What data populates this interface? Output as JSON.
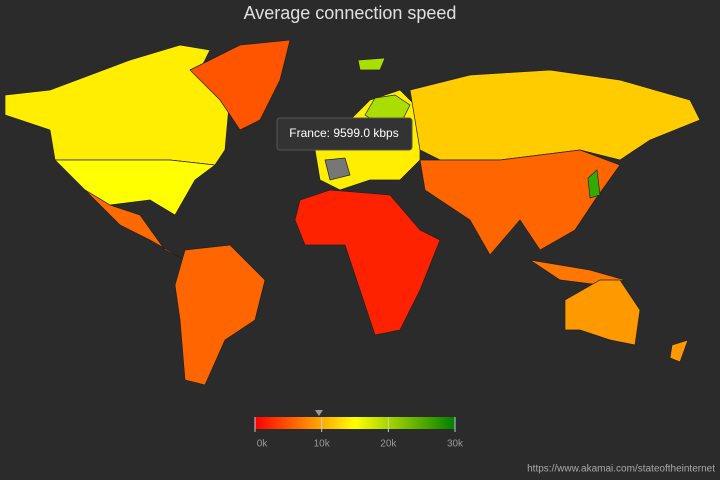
{
  "chart_data": {
    "type": "choropleth",
    "title": "Average connection speed",
    "tooltip": {
      "label": "France: 9599.0 kbps",
      "value": 9599
    },
    "colorlim": [
      0,
      30000
    ],
    "colorticks": [
      {
        "value": 0,
        "label": "0k"
      },
      {
        "value": 10000,
        "label": "10k"
      },
      {
        "value": 20000,
        "label": "20k"
      },
      {
        "value": 30000,
        "label": "30k"
      }
    ],
    "colors": [
      "#ff0000",
      "#ffff00",
      "#008000"
    ],
    "credit": "https://www.akamai.com/stateoftheinternet"
  }
}
